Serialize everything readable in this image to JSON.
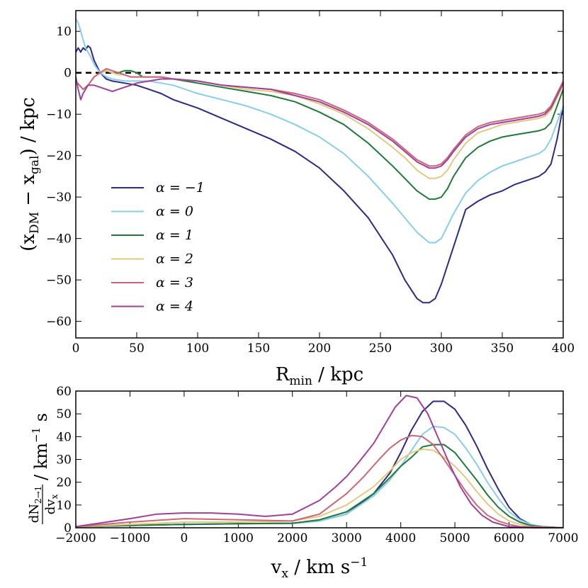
{
  "chart_data": [
    {
      "type": "line",
      "id": "top",
      "xlabel": "R_min / kpc",
      "ylabel": "(x_DM − x_gal) / kpc",
      "xlim": [
        0,
        400
      ],
      "ylim": [
        -64,
        15
      ],
      "xticks": [
        0,
        50,
        100,
        150,
        200,
        250,
        300,
        350,
        400
      ],
      "yticks": [
        10,
        0,
        -10,
        -20,
        -30,
        -40,
        -50,
        -60
      ],
      "xtick_labels": [
        "0",
        "50",
        "100",
        "150",
        "200",
        "250",
        "300",
        "350",
        "400"
      ],
      "ytick_labels": [
        "10",
        "0",
        "−10",
        "−20",
        "−30",
        "−40",
        "−50",
        "−60"
      ],
      "reference_line": {
        "y": 0,
        "style": "dashed",
        "color": "#000000"
      },
      "legend_position": "lower-left",
      "series": [
        {
          "name": "α = −1",
          "color": "#2c2a85",
          "x": [
            0,
            2,
            4,
            6,
            8,
            10,
            12,
            15,
            20,
            25,
            30,
            40,
            50,
            60,
            70,
            80,
            100,
            120,
            140,
            160,
            180,
            200,
            220,
            240,
            260,
            270,
            280,
            285,
            290,
            295,
            300,
            310,
            320,
            330,
            340,
            350,
            360,
            370,
            380,
            385,
            390,
            395,
            400
          ],
          "y": [
            5,
            6,
            5,
            6,
            5.5,
            6.5,
            6,
            3,
            0,
            -1.5,
            -2,
            -2.5,
            -3,
            -4,
            -5,
            -6.5,
            -8.5,
            -11,
            -13.5,
            -16,
            -19,
            -23,
            -28.5,
            -35,
            -44,
            -50,
            -54.5,
            -55.5,
            -55.5,
            -54.5,
            -51,
            -42,
            -33,
            -31,
            -29.5,
            -28.5,
            -27,
            -26,
            -25,
            -24,
            -22,
            -16,
            -8
          ]
        },
        {
          "name": "α = 0",
          "color": "#87ceeb",
          "x": [
            0,
            2,
            4,
            6,
            8,
            10,
            12,
            15,
            20,
            25,
            30,
            40,
            50,
            60,
            70,
            80,
            100,
            120,
            140,
            160,
            180,
            200,
            220,
            240,
            260,
            270,
            280,
            290,
            295,
            300,
            305,
            310,
            320,
            330,
            340,
            350,
            360,
            370,
            380,
            385,
            390,
            395,
            400
          ],
          "y": [
            13,
            12,
            10,
            8,
            6,
            5,
            4,
            2,
            0,
            -1,
            -1.5,
            -2,
            -2,
            -2,
            -2.5,
            -3,
            -5,
            -6.5,
            -8,
            -10,
            -12.5,
            -15.5,
            -19.5,
            -25,
            -31.5,
            -35,
            -38.5,
            -41,
            -41,
            -40,
            -37,
            -34,
            -29,
            -26,
            -24,
            -22.5,
            -21.5,
            -20.5,
            -19.5,
            -18.5,
            -16,
            -12,
            -8
          ]
        },
        {
          "name": "α = 1",
          "color": "#1f7a3a",
          "x": [
            0,
            3,
            6,
            10,
            15,
            20,
            25,
            30,
            35,
            40,
            45,
            50,
            55,
            60,
            70,
            80,
            100,
            120,
            140,
            160,
            180,
            200,
            220,
            240,
            260,
            270,
            280,
            290,
            295,
            300,
            305,
            310,
            320,
            330,
            340,
            350,
            360,
            370,
            380,
            385,
            390,
            395,
            400
          ],
          "y": [
            -2,
            -3,
            -4,
            -3,
            -1,
            0,
            0.5,
            0,
            0,
            0.5,
            0.5,
            0,
            -1,
            -1,
            -1,
            -1.5,
            -2.5,
            -3.5,
            -4.5,
            -5.5,
            -7,
            -9.5,
            -12.5,
            -17,
            -22.5,
            -25.5,
            -28.5,
            -30.5,
            -30.5,
            -30,
            -28,
            -25,
            -20.5,
            -18,
            -16.5,
            -15.5,
            -15,
            -14.5,
            -14,
            -13.5,
            -12,
            -8,
            -4
          ]
        },
        {
          "name": "α = 2",
          "color": "#e2c97f",
          "x": [
            0,
            3,
            6,
            10,
            15,
            20,
            25,
            30,
            35,
            40,
            45,
            50,
            55,
            60,
            70,
            80,
            100,
            120,
            140,
            160,
            180,
            200,
            220,
            240,
            260,
            270,
            280,
            290,
            295,
            300,
            305,
            310,
            320,
            330,
            340,
            350,
            360,
            370,
            380,
            385,
            390,
            395,
            400
          ],
          "y": [
            -2,
            -3,
            -4,
            -3,
            -1,
            0,
            0.5,
            0,
            -0.5,
            -0.5,
            -1,
            -1,
            -1,
            -1,
            -1,
            -1.5,
            -2,
            -3,
            -4,
            -4.5,
            -5.5,
            -7.5,
            -10,
            -13.5,
            -18,
            -20.5,
            -23.5,
            -25.5,
            -25.5,
            -25,
            -23.5,
            -21,
            -17,
            -14.5,
            -13.5,
            -12.5,
            -12,
            -11.5,
            -11,
            -10.5,
            -9,
            -6,
            -3
          ]
        },
        {
          "name": "α = 3",
          "color": "#cc6677",
          "x": [
            0,
            3,
            6,
            10,
            15,
            20,
            25,
            30,
            35,
            40,
            45,
            50,
            55,
            60,
            70,
            80,
            100,
            120,
            140,
            160,
            180,
            200,
            220,
            240,
            260,
            270,
            280,
            290,
            295,
            300,
            305,
            310,
            320,
            330,
            340,
            350,
            360,
            370,
            380,
            385,
            390,
            395,
            400
          ],
          "y": [
            -2,
            -3,
            -4,
            -3,
            -1,
            0,
            1,
            0.5,
            0,
            -0.5,
            -1,
            -1,
            -1,
            -1,
            -1,
            -1.5,
            -2,
            -3,
            -3.5,
            -4,
            -5,
            -6.5,
            -9,
            -12,
            -16,
            -18.5,
            -21,
            -22.5,
            -22.5,
            -22,
            -20.5,
            -18.5,
            -15,
            -13,
            -12,
            -11.5,
            -11,
            -10.5,
            -10,
            -9.5,
            -8,
            -5,
            -2
          ]
        },
        {
          "name": "α = 4",
          "color": "#a0409a",
          "x": [
            0,
            2,
            4,
            6,
            8,
            10,
            12,
            15,
            20,
            25,
            30,
            35,
            40,
            45,
            50,
            60,
            70,
            80,
            100,
            120,
            140,
            160,
            180,
            200,
            220,
            240,
            260,
            270,
            280,
            290,
            295,
            300,
            305,
            310,
            320,
            330,
            340,
            350,
            360,
            370,
            380,
            385,
            390,
            395,
            400
          ],
          "y": [
            -1,
            -4,
            -6.5,
            -5,
            -4,
            -3,
            -3,
            -3,
            -3.5,
            -4,
            -4.5,
            -4,
            -3.5,
            -3,
            -2.5,
            -2,
            -1.5,
            -1.5,
            -2,
            -3,
            -3.5,
            -4,
            -5.5,
            -7,
            -9.5,
            -12.5,
            -16.5,
            -19,
            -21.5,
            -23,
            -23,
            -22.5,
            -21,
            -19,
            -15.5,
            -13.5,
            -12.5,
            -12,
            -11.5,
            -11,
            -10.5,
            -10,
            -8.5,
            -5.5,
            -2.5
          ]
        }
      ]
    },
    {
      "type": "line",
      "id": "bottom",
      "xlabel": "v_x / km s^−1",
      "ylabel": "dN_2→1 / dv_x / km^−1 s",
      "xlim": [
        -2000,
        7000
      ],
      "ylim": [
        0,
        60
      ],
      "xticks": [
        -2000,
        -1000,
        0,
        1000,
        2000,
        3000,
        4000,
        5000,
        6000,
        7000
      ],
      "yticks": [
        0,
        10,
        20,
        30,
        40,
        50,
        60
      ],
      "xtick_labels": [
        "−2000",
        "−1000",
        "0",
        "1000",
        "2000",
        "3000",
        "4000",
        "5000",
        "6000",
        "7000"
      ],
      "ytick_labels": [
        "0",
        "10",
        "20",
        "30",
        "40",
        "50",
        "60"
      ],
      "series": [
        {
          "name": "α = −1",
          "color": "#2c2a85",
          "x": [
            -2000,
            -1000,
            0,
            1000,
            2000,
            2500,
            3000,
            3500,
            3800,
            4000,
            4200,
            4400,
            4600,
            4800,
            5000,
            5200,
            5400,
            5600,
            5800,
            6000,
            6200,
            6400,
            6600,
            7000
          ],
          "y": [
            0.5,
            1,
            1.5,
            1.8,
            2,
            3,
            6,
            15,
            24,
            33,
            43,
            51,
            55.5,
            55.5,
            52,
            45,
            36,
            26,
            17,
            9,
            4,
            1.5,
            0.5,
            0
          ]
        },
        {
          "name": "α = 0",
          "color": "#87ceeb",
          "x": [
            -2000,
            -1000,
            0,
            1000,
            2000,
            2500,
            3000,
            3500,
            3800,
            4000,
            4200,
            4400,
            4600,
            4800,
            5000,
            5200,
            5400,
            5600,
            5800,
            6000,
            6200,
            6400,
            6600,
            7000
          ],
          "y": [
            0.5,
            1,
            1.5,
            1.8,
            2,
            3,
            6,
            14,
            21,
            27,
            34,
            41,
            44.5,
            44,
            41,
            35,
            28,
            20,
            13,
            7,
            3.5,
            1.5,
            0.5,
            0
          ]
        },
        {
          "name": "α = 1",
          "color": "#1f7a3a",
          "x": [
            -2000,
            -1000,
            0,
            1000,
            2000,
            2500,
            3000,
            3500,
            3800,
            4000,
            4200,
            4400,
            4600,
            4800,
            5000,
            5200,
            5400,
            5600,
            5800,
            6000,
            6200,
            6400,
            6600,
            7000
          ],
          "y": [
            0.5,
            1,
            1.5,
            1.8,
            2,
            3.5,
            7,
            15,
            22,
            27,
            31,
            35.5,
            36.5,
            36.5,
            33,
            27,
            21,
            14.5,
            9,
            5,
            2.5,
            1,
            0.5,
            0
          ]
        },
        {
          "name": "α = 2",
          "color": "#e2c97f",
          "x": [
            -2000,
            -1000,
            0,
            1000,
            2000,
            2500,
            3000,
            3500,
            3800,
            4000,
            4200,
            4400,
            4600,
            4800,
            5000,
            5200,
            5400,
            5600,
            5800,
            6000,
            6200,
            6400,
            7000
          ],
          "y": [
            0.5,
            1.5,
            2.5,
            2.5,
            3,
            5,
            10,
            18,
            25,
            30,
            33,
            34.5,
            34,
            31,
            27,
            22,
            16,
            10.5,
            6,
            3,
            1.5,
            0.5,
            0
          ]
        },
        {
          "name": "α = 3",
          "color": "#cc6677",
          "x": [
            -2000,
            -1000,
            0,
            1000,
            2000,
            2500,
            3000,
            3300,
            3600,
            3800,
            4000,
            4200,
            4400,
            4600,
            4800,
            5000,
            5200,
            5400,
            5600,
            5800,
            6000,
            6200,
            7000
          ],
          "y": [
            0.5,
            2.5,
            4,
            3.5,
            3,
            6,
            15,
            22,
            30,
            35,
            38.5,
            40.5,
            40,
            36.5,
            30,
            23,
            16,
            10,
            5.5,
            3,
            1.5,
            0.5,
            0
          ]
        },
        {
          "name": "α = 4",
          "color": "#a0409a",
          "x": [
            -2000,
            -1000,
            -500,
            0,
            500,
            1000,
            1500,
            2000,
            2500,
            2800,
            3000,
            3200,
            3500,
            3700,
            3900,
            4100,
            4300,
            4500,
            4700,
            4900,
            5100,
            5300,
            5500,
            5700,
            6000,
            6500,
            7000
          ],
          "y": [
            0.5,
            4,
            6,
            6.5,
            6.5,
            6,
            5,
            6,
            12,
            18,
            22.5,
            28,
            37,
            45,
            53,
            58,
            57,
            50,
            39,
            28,
            18,
            10.5,
            5.5,
            2.5,
            0.5,
            0,
            0
          ]
        }
      ]
    }
  ]
}
